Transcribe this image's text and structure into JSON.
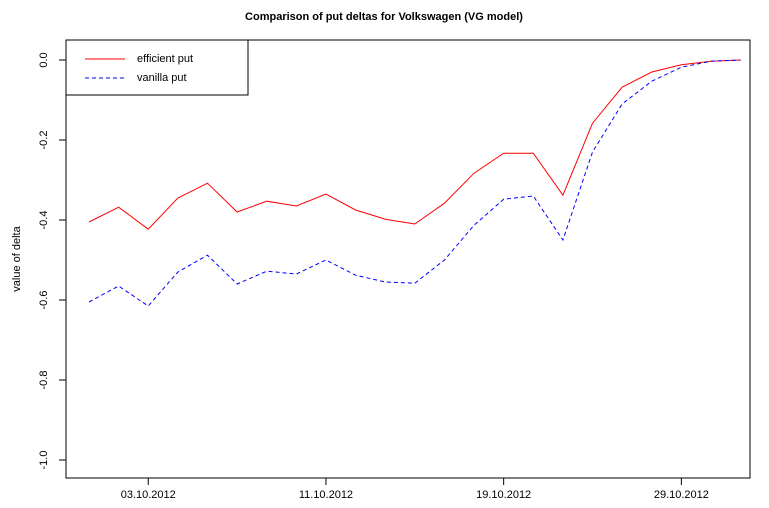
{
  "chart_data": {
    "type": "line",
    "title": "Comparison of put deltas for Volkswagen (VG model)",
    "y_label": "value of delta",
    "categories": [
      null,
      null,
      "03.10.2012",
      null,
      null,
      null,
      null,
      null,
      "11.10.2012",
      null,
      null,
      null,
      null,
      null,
      "19.10.2012",
      null,
      null,
      null,
      null,
      null,
      "29.10.2012",
      null,
      null
    ],
    "series": [
      {
        "name": "efficient put",
        "color": "#ff0000",
        "dash": "solid",
        "values": [
          -0.405,
          -0.368,
          -0.423,
          -0.345,
          -0.308,
          -0.38,
          -0.353,
          -0.365,
          -0.335,
          -0.375,
          -0.398,
          -0.41,
          -0.358,
          -0.283,
          -0.233,
          -0.233,
          -0.338,
          -0.158,
          -0.068,
          -0.03,
          -0.012,
          -0.003,
          0
        ]
      },
      {
        "name": "vanilla put",
        "color": "#0000ff",
        "dash": "dashed",
        "values": [
          -0.605,
          -0.565,
          -0.615,
          -0.53,
          -0.488,
          -0.56,
          -0.528,
          -0.535,
          -0.5,
          -0.538,
          -0.555,
          -0.558,
          -0.5,
          -0.413,
          -0.348,
          -0.34,
          -0.45,
          -0.23,
          -0.11,
          -0.053,
          -0.018,
          -0.003,
          0
        ]
      }
    ],
    "ylim": [
      -1.045,
      0.05
    ],
    "yticks": [
      {
        "value": -1,
        "label": "-1.0"
      },
      {
        "value": -0.8,
        "label": "-0.8"
      },
      {
        "value": -0.6,
        "label": "-0.6"
      },
      {
        "value": -0.4,
        "label": "-0.4"
      },
      {
        "value": -0.2,
        "label": "-0.2"
      },
      {
        "value": 0,
        "label": "0.0"
      }
    ],
    "legend": "top-left"
  }
}
